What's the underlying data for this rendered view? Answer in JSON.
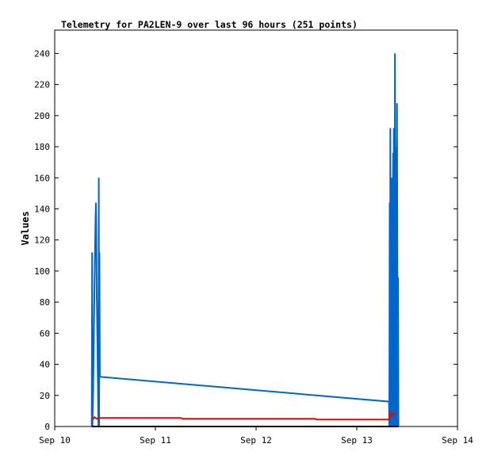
{
  "chart_data": {
    "type": "line",
    "title": "Telemetry for PA2LEN-9 over last 96 hours (251 points)",
    "ylabel": "Values",
    "xlabel": "",
    "xlim": [
      "Sep 10",
      "Sep 14"
    ],
    "ylim": [
      0,
      255
    ],
    "grid": false,
    "x_ticks": [
      "Sep 10",
      "Sep 11",
      "Sep 12",
      "Sep 13",
      "Sep 14"
    ],
    "y_ticks": [
      0,
      20,
      40,
      60,
      80,
      100,
      120,
      140,
      160,
      180,
      200,
      220,
      240
    ],
    "series": [
      {
        "color": "#0066cc",
        "points": [
          [
            "2024-09-10 08:50",
            0
          ],
          [
            "2024-09-10 08:55",
            112
          ],
          [
            "2024-09-10 09:00",
            0
          ],
          [
            "2024-09-10 09:10",
            22
          ],
          [
            "2024-09-10 09:20",
            60
          ],
          [
            "2024-09-10 09:35",
            110
          ],
          [
            "2024-09-10 09:45",
            136
          ],
          [
            "2024-09-10 09:50",
            144
          ],
          [
            "2024-09-10 09:55",
            125
          ],
          [
            "2024-09-10 10:00",
            90
          ],
          [
            "2024-09-10 10:10",
            55
          ],
          [
            "2024-09-10 10:20",
            18
          ],
          [
            "2024-09-10 10:25",
            0
          ],
          [
            "2024-09-10 10:30",
            160
          ],
          [
            "2024-09-10 10:35",
            0
          ],
          [
            "2024-09-10 10:40",
            112
          ],
          [
            "2024-09-10 10:45",
            32
          ],
          [
            "2024-09-13 07:40",
            16
          ],
          [
            "2024-09-13 07:45",
            0
          ],
          [
            "2024-09-13 07:50",
            144
          ],
          [
            "2024-09-13 07:55",
            0
          ],
          [
            "2024-09-13 08:00",
            192
          ],
          [
            "2024-09-13 08:05",
            0
          ],
          [
            "2024-09-13 08:20",
            160
          ],
          [
            "2024-09-13 08:25",
            0
          ],
          [
            "2024-09-13 08:35",
            144
          ],
          [
            "2024-09-13 08:40",
            176
          ],
          [
            "2024-09-13 08:45",
            0
          ],
          [
            "2024-09-13 08:50",
            192
          ],
          [
            "2024-09-13 08:55",
            112
          ],
          [
            "2024-09-13 09:00",
            0
          ],
          [
            "2024-09-13 09:05",
            240
          ],
          [
            "2024-09-13 09:10",
            160
          ],
          [
            "2024-09-13 09:15",
            0
          ],
          [
            "2024-09-13 09:20",
            180
          ],
          [
            "2024-09-13 09:25",
            176
          ],
          [
            "2024-09-13 09:30",
            0
          ],
          [
            "2024-09-13 09:35",
            208
          ],
          [
            "2024-09-13 09:40",
            112
          ],
          [
            "2024-09-13 09:45",
            0
          ],
          [
            "2024-09-13 09:50",
            96
          ],
          [
            "2024-09-13 09:55",
            0
          ]
        ]
      },
      {
        "color": "#ee0000",
        "points": [
          [
            "2024-09-10 08:55",
            4
          ],
          [
            "2024-09-10 09:10",
            5
          ],
          [
            "2024-09-10 09:30",
            6
          ],
          [
            "2024-09-10 10:00",
            5
          ],
          [
            "2024-09-10 10:45",
            5.5
          ],
          [
            "2024-09-11 06:00",
            5.5
          ],
          [
            "2024-09-11 06:30",
            5
          ],
          [
            "2024-09-12 14:00",
            5
          ],
          [
            "2024-09-12 14:30",
            4.5
          ],
          [
            "2024-09-13 07:40",
            4.5
          ],
          [
            "2024-09-13 08:00",
            9
          ],
          [
            "2024-09-13 08:20",
            7
          ],
          [
            "2024-09-13 08:50",
            8
          ],
          [
            "2024-09-13 09:20",
            8.5
          ]
        ]
      },
      {
        "color": "#000000",
        "points": [
          [
            "2024-09-10 08:50",
            0
          ],
          [
            "2024-09-13 09:55",
            0
          ]
        ]
      }
    ]
  }
}
